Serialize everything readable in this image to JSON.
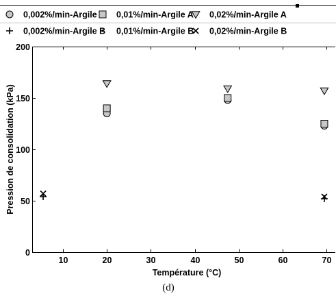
{
  "chart_data": {
    "type": "scatter",
    "xlabel": "Température (°C)",
    "ylabel": "Pression de consolidation (kPa)",
    "xlim": [
      3,
      72
    ],
    "ylim": [
      0,
      200
    ],
    "xticks": [
      10,
      20,
      30,
      40,
      50,
      60,
      70
    ],
    "yticks": [
      0,
      50,
      100,
      150,
      200
    ],
    "grid": false,
    "legend_position": "top",
    "panel_label": "(d)",
    "series": [
      {
        "name": "0,002%/min-Argile A",
        "marker": "circle",
        "color": "#c8c8c8",
        "points": [
          [
            20,
            135
          ],
          [
            47.5,
            148
          ],
          [
            69.5,
            123
          ]
        ]
      },
      {
        "name": "0,01%/min-Argile A",
        "marker": "square",
        "color": "#c8c8c8",
        "points": [
          [
            20,
            140
          ],
          [
            47.5,
            150
          ],
          [
            69.5,
            125
          ]
        ]
      },
      {
        "name": "0,02%/min-Argile A",
        "marker": "triangle-down",
        "color": "#c8c8c8",
        "points": [
          [
            20,
            164
          ],
          [
            47.5,
            159
          ],
          [
            69.5,
            157
          ]
        ]
      },
      {
        "name": "0,002%/min-Argile B",
        "marker": "plus",
        "color": "#000000",
        "points": [
          [
            5.5,
            54
          ],
          [
            69.5,
            52
          ]
        ]
      },
      {
        "name": "0,01%/min-Argile B",
        "marker": "dot",
        "color": "#000000",
        "points": [
          [
            5.5,
            56
          ],
          [
            69.5,
            53
          ]
        ]
      },
      {
        "name": "0,02%/min-Argile B",
        "marker": "x",
        "color": "#000000",
        "points": [
          [
            5.5,
            57
          ],
          [
            69.5,
            54
          ]
        ]
      }
    ]
  }
}
